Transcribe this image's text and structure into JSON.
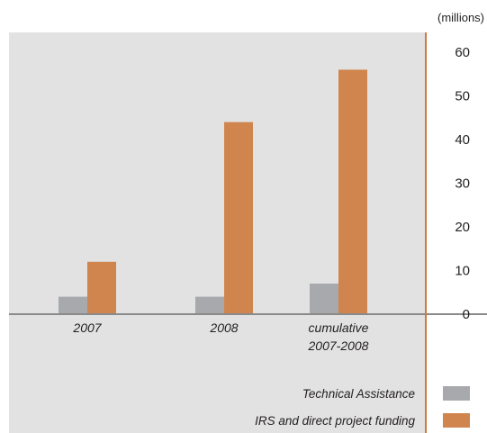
{
  "chart_data": {
    "type": "bar",
    "title": "",
    "unit_label": "(millions)",
    "xlabel": "",
    "ylabel": "",
    "ylim": [
      0,
      60
    ],
    "y_ticks": [
      0,
      10,
      20,
      30,
      40,
      50,
      60
    ],
    "categories": [
      "2007",
      "2008",
      "cumulative 2007-2008"
    ],
    "category_lines": [
      [
        "2007"
      ],
      [
        "2008"
      ],
      [
        "cumulative",
        "2007-2008"
      ]
    ],
    "series": [
      {
        "name": "Technical Assistance",
        "color": "#a7a9ac",
        "values": [
          4,
          4,
          7
        ]
      },
      {
        "name": "IRS and direct project funding",
        "color": "#d0854f",
        "values": [
          12,
          44,
          56
        ]
      }
    ],
    "plot_background": "#e2e2e3",
    "axis_color": "#cf7b40",
    "baseline_color": "#8a8a8a",
    "grid": false,
    "legend_position": "bottom-right",
    "y_axis_side": "right"
  }
}
